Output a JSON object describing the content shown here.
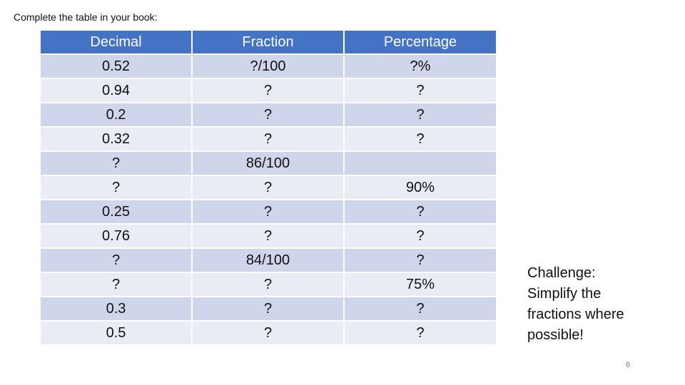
{
  "instruction": "Complete the table in your book:",
  "table": {
    "headers": [
      "Decimal",
      "Fraction",
      "Percentage"
    ],
    "rows": [
      [
        "0.52",
        "?/100",
        "?%"
      ],
      [
        "0.94",
        "?",
        "?"
      ],
      [
        "0.2",
        "?",
        "?"
      ],
      [
        "0.32",
        "?",
        "?"
      ],
      [
        "?",
        "86/100",
        ""
      ],
      [
        "?",
        "?",
        "90%"
      ],
      [
        "0.25",
        "?",
        "?"
      ],
      [
        "0.76",
        "?",
        "?"
      ],
      [
        "?",
        "84/100",
        "?"
      ],
      [
        "?",
        "?",
        "75%"
      ],
      [
        "0.3",
        "?",
        "?"
      ],
      [
        "0.5",
        "?",
        "?"
      ]
    ]
  },
  "challenge": {
    "lines": [
      "Challenge:",
      "Simplify the",
      "fractions where",
      "possible!"
    ]
  },
  "page_number": "6",
  "colors": {
    "header_bg": "#4472c4",
    "row_band_dark": "#cfd5ea",
    "row_band_light": "#e9ebf5"
  }
}
